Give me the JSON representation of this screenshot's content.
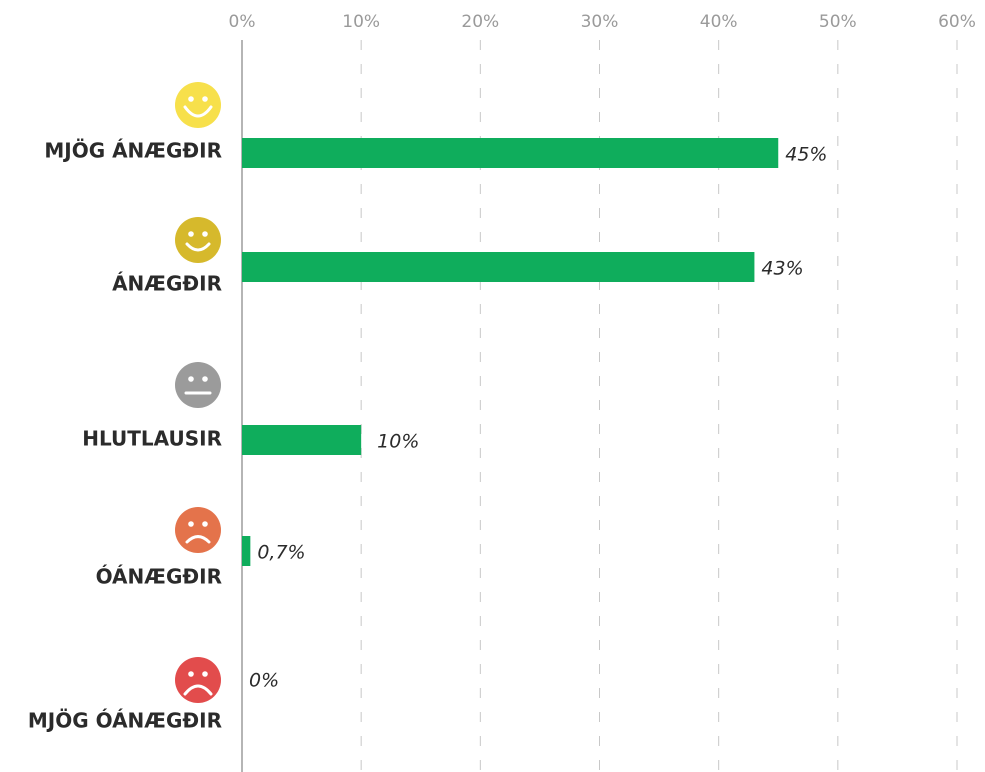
{
  "chart_data": {
    "type": "bar",
    "orientation": "horizontal",
    "categories": [
      "MJÖG ÁNÆGÐIR",
      "ÁNÆGÐIR",
      "HLUTLAUSIR",
      "ÓÁNÆGÐIR",
      "MJÖG ÓÁNÆGÐIR"
    ],
    "values": [
      45,
      43,
      10,
      0.7,
      0
    ],
    "value_labels": [
      "45%",
      "43%",
      "10%",
      "0,7%",
      "0%"
    ],
    "color": "#0fad5c",
    "xlim": [
      0,
      60
    ],
    "xticks": [
      {
        "value": 0,
        "label": "0%"
      },
      {
        "value": 10,
        "label": "10%"
      },
      {
        "value": 20,
        "label": "20%"
      },
      {
        "value": 30,
        "label": "30%"
      },
      {
        "value": 40,
        "label": "40%"
      },
      {
        "value": 50,
        "label": "50%"
      },
      {
        "value": 60,
        "label": "60%"
      }
    ],
    "grid": true
  }
}
